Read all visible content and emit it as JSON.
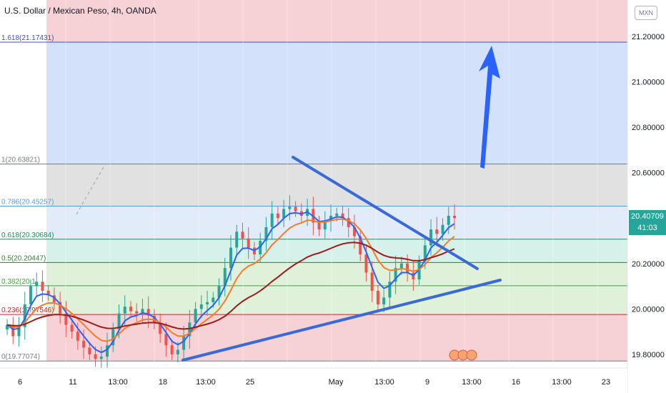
{
  "header": {
    "title": "U.S. Dollar / Mexican Peso, 4h, OANDA",
    "symbol_badge": "MXN"
  },
  "price_tag": {
    "price": "20.40709",
    "countdown": "41:03",
    "color": "#26a69a"
  },
  "colors": {
    "fib_red": "#f5c9ce",
    "fib_blue": "#cbdcfa",
    "fib_gray": "#dcdcdc",
    "fib_lightblue": "#dde9f7",
    "fib_teal": "#cfeee6",
    "fib_green": "#d9eed2",
    "trendline": "#3a6ad6",
    "arrow": "#2962ff",
    "ema_fast": "#2962ff",
    "ema_mid": "#f57c2a",
    "ema_slow": "#9c1c1c"
  },
  "chart_data": {
    "type": "candlestick",
    "title": "U.S. Dollar / Mexican Peso, 4h, OANDA",
    "y_axis": {
      "ticks": [
        "21.20000",
        "21.00000",
        "20.80000",
        "20.60000",
        "20.40000",
        "20.20000",
        "20.00000",
        "19.80000"
      ],
      "range": [
        19.74,
        21.36
      ]
    },
    "x_axis": {
      "ticks": [
        "6",
        "11",
        "13:00",
        "18",
        "13:00",
        "25",
        "May",
        "13:00",
        "9",
        "13:00",
        "16",
        "13:00",
        "23"
      ]
    },
    "fib_levels": [
      {
        "label": "1.618(21.17431)",
        "value": 21.17431
      },
      {
        "label": "1(20.63821)",
        "value": 20.63821
      },
      {
        "label": "0.786(20.45257)",
        "value": 20.45257
      },
      {
        "label": "0.618(20.30684)",
        "value": 20.30684
      },
      {
        "label": "0.5(20.20447)",
        "value": 20.20447
      },
      {
        "label": "0.382(20.1",
        "value": 20.102
      },
      {
        "label": "0.236(19.97546)",
        "value": 19.97546
      },
      {
        "label": "0(19.77074)",
        "value": 19.77074
      }
    ],
    "last_price": 20.40709,
    "closes": [
      19.93,
      19.88,
      19.92,
      20.02,
      20.1,
      20.12,
      20.08,
      20.06,
      20.03,
      19.98,
      19.93,
      19.9,
      19.86,
      19.83,
      19.8,
      19.78,
      19.79,
      19.84,
      19.91,
      19.98,
      20.01,
      19.99,
      19.98,
      20.0,
      19.97,
      19.94,
      19.89,
      19.84,
      19.8,
      19.82,
      19.88,
      19.94,
      20.0,
      20.02,
      20.03,
      20.05,
      20.1,
      20.18,
      20.27,
      20.34,
      20.31,
      20.27,
      20.24,
      20.3,
      20.36,
      20.42,
      20.4,
      20.44,
      20.45,
      20.43,
      20.41,
      20.44,
      20.38,
      20.35,
      20.39,
      20.41,
      20.42,
      20.4,
      20.36,
      20.32,
      20.24,
      20.16,
      20.08,
      20.02,
      20.05,
      20.12,
      20.18,
      20.2,
      20.16,
      20.13,
      20.21,
      20.28,
      20.35,
      20.33,
      20.37,
      20.41,
      20.4
    ]
  }
}
